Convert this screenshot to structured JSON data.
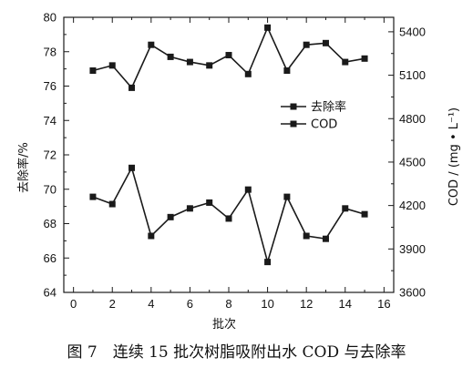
{
  "caption": "图 7　连续 15 批次树脂吸附出水 COD 与去除率",
  "chart_data": {
    "type": "line",
    "xlabel": "批次",
    "ylabel_left": "去除率/%",
    "ylabel_right": "COD / (mg • L⁻¹)",
    "xlim": [
      -0.5,
      16.5
    ],
    "ylim_left": [
      64,
      80
    ],
    "ylim_right": [
      3600,
      5500
    ],
    "x_ticks": [
      0,
      2,
      4,
      6,
      8,
      10,
      12,
      14,
      16
    ],
    "y_left_ticks": [
      64,
      66,
      68,
      70,
      72,
      74,
      76,
      78,
      80
    ],
    "y_right_ticks": [
      3600,
      3900,
      4200,
      4500,
      4800,
      5100,
      5400
    ],
    "x": [
      1,
      2,
      3,
      4,
      5,
      6,
      7,
      8,
      9,
      10,
      11,
      12,
      13,
      14,
      15
    ],
    "series": [
      {
        "name": "去除率",
        "axis": "left",
        "values": [
          76.9,
          77.2,
          75.9,
          78.4,
          77.7,
          77.4,
          77.2,
          77.8,
          76.7,
          79.4,
          76.9,
          78.4,
          78.5,
          77.4,
          77.6
        ]
      },
      {
        "name": "COD",
        "axis": "right",
        "values": [
          4260,
          4210,
          4460,
          3990,
          4120,
          4180,
          4220,
          4110,
          4310,
          3810,
          4260,
          3990,
          3970,
          4180,
          4140
        ]
      }
    ],
    "legend_position": "right-middle",
    "grid": false,
    "colors": {
      "line": "#1a1a1a",
      "marker": "#1a1a1a"
    }
  }
}
